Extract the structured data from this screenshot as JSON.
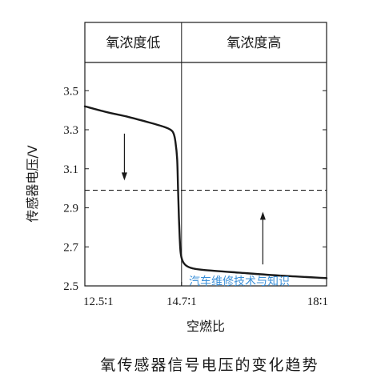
{
  "chart_data": {
    "type": "line",
    "xlabel": "空燃比",
    "ylabel": "传感器电压/V",
    "caption": "氧传感器信号电压的变化趋势",
    "xlim": [
      12.5,
      18.0
    ],
    "ylim": [
      2.5,
      3.6
    ],
    "x_ticks": [
      {
        "value": 12.5,
        "label": "12.5∶1"
      },
      {
        "value": 14.7,
        "label": "14.7∶1"
      },
      {
        "value": 18.0,
        "label": "18∶1"
      }
    ],
    "y_ticks": [
      {
        "value": 2.5,
        "label": "2.5"
      },
      {
        "value": 2.7,
        "label": "2.7"
      },
      {
        "value": 2.9,
        "label": "2.9"
      },
      {
        "value": 3.1,
        "label": "3.1"
      },
      {
        "value": 3.3,
        "label": "3.3"
      },
      {
        "value": 3.5,
        "label": "3.5"
      }
    ],
    "regions": [
      {
        "label": "氧浓度低",
        "from": 12.5,
        "to": 14.7
      },
      {
        "label": "氧浓度高",
        "from": 14.7,
        "to": 18.0
      }
    ],
    "divider_x": 14.7,
    "reference_line": {
      "y": 2.99,
      "style": "dashed"
    },
    "arrows": [
      {
        "x": 13.4,
        "from_y": 3.28,
        "to_y": 3.04,
        "direction": "down"
      },
      {
        "x": 16.55,
        "from_y": 2.61,
        "to_y": 2.88,
        "direction": "up"
      }
    ],
    "series": [
      {
        "x": [
          12.5,
          13.0,
          13.5,
          14.0,
          14.3,
          14.45,
          14.52,
          14.56,
          14.6,
          14.62,
          14.64,
          14.66,
          14.68,
          14.72,
          14.8,
          14.95,
          15.2,
          16.0,
          17.0,
          18.0
        ],
        "y": [
          3.42,
          3.39,
          3.365,
          3.335,
          3.315,
          3.3,
          3.28,
          3.24,
          3.15,
          3.0,
          2.85,
          2.74,
          2.67,
          2.63,
          2.605,
          2.59,
          2.582,
          2.568,
          2.552,
          2.54
        ]
      }
    ],
    "grid": false,
    "colors": {
      "line": "#1a1a1a",
      "watermark": "#3a8fd8"
    }
  },
  "watermark": "汽车维修技术与知识"
}
